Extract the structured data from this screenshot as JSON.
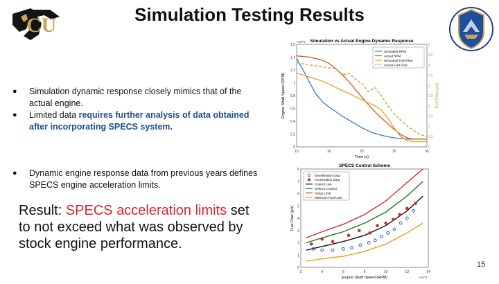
{
  "slide": {
    "title": "Simulation Testing Results",
    "page_number": "15"
  },
  "bullets": [
    {
      "marker": "●",
      "text": "Simulation dynamic response closely mimics that of the actual engine."
    },
    {
      "marker": "●",
      "text_plain": "Limited data ",
      "text_highlight": "requires further analysis of data obtained after incorporating SPECS system."
    },
    {
      "marker": "●",
      "text": "Dynamic engine response data from previous years defines SPECS engine acceleration limits."
    }
  ],
  "result": {
    "label": "Result",
    "colon": ": ",
    "highlight": "SPECS acceleration limits",
    "rest": " set to not exceed what was observed by stock engine performance."
  },
  "colors": {
    "highlight_blue": "#1f4e8c",
    "result_red": "#d9262c"
  },
  "chart_data": [
    {
      "type": "line",
      "title": "Simulation vs Actual Engine Dynamic Response",
      "xlabel": "Time (s)",
      "ylabel": "Engine Shaft Speed (RPM)",
      "y2label": "Fuel Flow (g/s)",
      "xlim": [
        15,
        35
      ],
      "ylim": [
        0,
        1.6
      ],
      "y_exponent": "×10^5",
      "y2lim": [
        0,
        5
      ],
      "x_ticks": [
        "15",
        "20",
        "25",
        "30",
        "35"
      ],
      "y_ticks": [
        "0",
        "0.2",
        "0.4",
        "0.6",
        "0.8",
        "1",
        "1.2",
        "1.4",
        "1.6"
      ],
      "y2_ticks": [
        "0",
        "0.5",
        "1",
        "1.5",
        "2",
        "2.5",
        "3",
        "3.5",
        "4",
        "4.5",
        "5"
      ],
      "legend_position": "top-right",
      "series": [
        {
          "name": "Simulated RPM",
          "color": "#2f7fc1",
          "dash": false,
          "axis": "left",
          "x": [
            15,
            16,
            17,
            18,
            19,
            20,
            21,
            22,
            23,
            24,
            25,
            26,
            27,
            28,
            29,
            30,
            31,
            32,
            33,
            34,
            35
          ],
          "y": [
            1.38,
            1.2,
            1.0,
            0.82,
            0.7,
            0.62,
            0.55,
            0.48,
            0.42,
            0.36,
            0.3,
            0.25,
            0.21,
            0.18,
            0.16,
            0.14,
            0.13,
            0.12,
            0.12,
            0.12,
            0.12
          ]
        },
        {
          "name": "Actual RPM",
          "color": "#d9541e",
          "dash": false,
          "axis": "left",
          "x": [
            15,
            17,
            19,
            20,
            21,
            22,
            23,
            24,
            25,
            26,
            27,
            28,
            29,
            30,
            31,
            32,
            33,
            34,
            35
          ],
          "y": [
            1.42,
            1.4,
            1.35,
            1.3,
            1.22,
            1.13,
            1.02,
            0.9,
            0.78,
            0.66,
            0.55,
            0.45,
            0.36,
            0.27,
            0.19,
            0.14,
            0.12,
            0.12,
            0.12
          ]
        },
        {
          "name": "Simulated Fuel Flow",
          "color": "#e3a21a",
          "dash": false,
          "axis": "right",
          "x": [
            15,
            17,
            19,
            21,
            23,
            25,
            27,
            28,
            29,
            30,
            31,
            32,
            33,
            34,
            35
          ],
          "y": [
            3.6,
            3.4,
            3.2,
            2.9,
            2.6,
            2.3,
            2.0,
            1.8,
            1.4,
            0.9,
            0.5,
            0.3,
            0.25,
            0.25,
            0.25
          ]
        },
        {
          "name": "Actual Fuel Flow",
          "color": "#c89b2e",
          "dash": true,
          "axis": "right",
          "x": [
            15,
            17,
            19,
            21,
            22,
            23,
            24,
            25,
            26,
            27,
            28,
            29,
            30,
            31,
            32,
            33,
            34,
            35
          ],
          "y": [
            4.1,
            4.0,
            3.9,
            3.8,
            3.5,
            3.6,
            3.3,
            3.1,
            2.7,
            2.9,
            2.5,
            2.0,
            1.6,
            1.3,
            1.0,
            0.8,
            0.6,
            0.5
          ]
        }
      ]
    },
    {
      "type": "scatter",
      "title": "SPECS Control Scheme",
      "xlabel": "Engine Shaft Speed (RPM)",
      "ylabel": "Fuel Flow (g/s)",
      "xlim": [
        2,
        14
      ],
      "x_exponent": "×10^4",
      "ylim": [
        0,
        8
      ],
      "x_ticks": [
        "2",
        "4",
        "6",
        "8",
        "10",
        "12",
        "14"
      ],
      "y_ticks": [
        "0",
        "1",
        "2",
        "3",
        "4",
        "5",
        "6",
        "7",
        "8"
      ],
      "legend_position": "top-left",
      "series": [
        {
          "name": "Deceleration Data",
          "color": "#1f3fbf",
          "marker": "circle",
          "x": [
            3.2,
            4,
            5,
            6,
            6.8,
            7.6,
            8.4,
            9,
            9.6,
            10.2,
            10.8,
            11.4,
            12,
            12.6
          ],
          "y": [
            1.5,
            1.4,
            1.4,
            1.5,
            1.6,
            1.8,
            2.0,
            2.2,
            2.5,
            2.8,
            3.1,
            3.6,
            4.0,
            4.6
          ]
        },
        {
          "name": "Acceleration Data",
          "color": "#c0392b",
          "marker": "circle",
          "x": [
            3,
            4,
            5,
            6.5,
            7.5,
            8.5,
            9.2,
            10,
            10.7,
            11.3,
            12,
            12.8
          ],
          "y": [
            1.9,
            2.3,
            2.1,
            2.6,
            3.0,
            2.8,
            3.4,
            3.6,
            3.9,
            4.3,
            4.8,
            5.2
          ]
        },
        {
          "name": "Control Line",
          "color": "#111111",
          "marker": "none",
          "x": [
            2.5,
            4,
            6,
            8,
            10,
            12,
            13.5
          ],
          "y": [
            1.4,
            1.7,
            2.1,
            2.6,
            3.4,
            4.6,
            5.8
          ]
        },
        {
          "name": "SPECS Control",
          "color": "#1e7a1e",
          "marker": "none",
          "x": [
            2.5,
            4,
            6,
            8,
            10,
            12,
            13.5
          ],
          "y": [
            2.0,
            2.4,
            2.9,
            3.6,
            4.5,
            5.8,
            7.0
          ]
        },
        {
          "name": "Surge Limit",
          "color": "#d9262c",
          "marker": "none",
          "x": [
            2.5,
            4,
            6,
            8,
            10,
            12,
            13.5
          ],
          "y": [
            2.4,
            2.9,
            3.5,
            4.3,
            5.4,
            6.9,
            8.0
          ]
        },
        {
          "name": "Minimum Fuel Limit",
          "color": "#e3a21a",
          "marker": "none",
          "x": [
            2.5,
            4,
            6,
            8,
            10,
            12,
            13.5
          ],
          "y": [
            0.5,
            0.7,
            0.9,
            1.3,
            1.9,
            2.8,
            3.6
          ]
        }
      ]
    }
  ]
}
